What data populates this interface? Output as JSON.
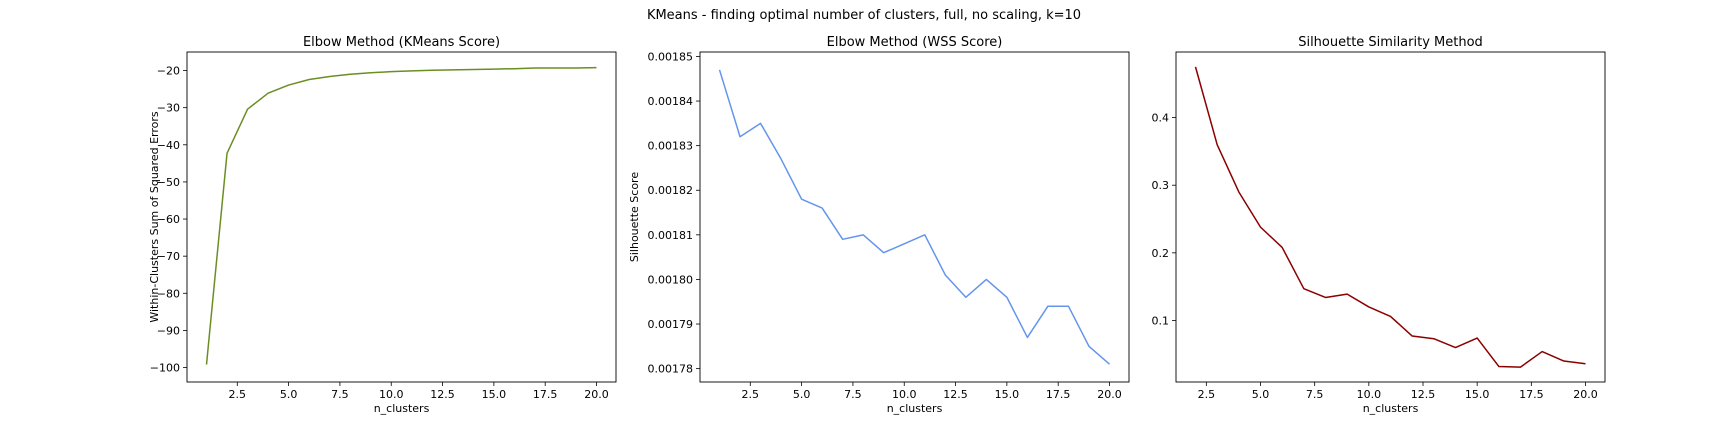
{
  "figure": {
    "suptitle": "KMeans - finding optimal number of clusters, full, no scaling, k=10"
  },
  "chart_data": [
    {
      "type": "line",
      "title": "Elbow Method (KMeans Score)",
      "xlabel": "n_clusters",
      "ylabel": "Within-Clusters Sum of Squared Errors",
      "color": "#6b8e23",
      "xlim": [
        0.05,
        20.95
      ],
      "ylim": [
        -103.9,
        -15.0
      ],
      "xticks": [
        2.5,
        5.0,
        7.5,
        10.0,
        12.5,
        15.0,
        17.5,
        20.0
      ],
      "xtick_labels": [
        "2.5",
        "5.0",
        "7.5",
        "10.0",
        "12.5",
        "15.0",
        "17.5",
        "20.0"
      ],
      "yticks": [
        -20,
        -30,
        -40,
        -50,
        -60,
        -70,
        -80,
        -90,
        -100
      ],
      "ytick_labels": [
        "−20",
        "−30",
        "−40",
        "−50",
        "−60",
        "−70",
        "−80",
        "−90",
        "−100"
      ],
      "grid": false,
      "x": [
        1,
        2,
        3,
        4,
        5,
        6,
        7,
        8,
        9,
        10,
        11,
        12,
        13,
        14,
        15,
        16,
        17,
        18,
        19,
        20
      ],
      "y": [
        -99.2,
        -42.3,
        -30.4,
        -26.1,
        -23.9,
        -22.4,
        -21.6,
        -21.0,
        -20.6,
        -20.3,
        -20.1,
        -19.9,
        -19.8,
        -19.7,
        -19.6,
        -19.5,
        -19.3,
        -19.3,
        -19.3,
        -19.2
      ]
    },
    {
      "type": "line",
      "title": "Elbow Method (WSS Score)",
      "xlabel": "n_clusters",
      "ylabel": "Silhouette Score",
      "color": "#6495ed",
      "xlim": [
        0.05,
        20.95
      ],
      "ylim": [
        0.001777,
        0.001851
      ],
      "xticks": [
        2.5,
        5.0,
        7.5,
        10.0,
        12.5,
        15.0,
        17.5,
        20.0
      ],
      "xtick_labels": [
        "2.5",
        "5.0",
        "7.5",
        "10.0",
        "12.5",
        "15.0",
        "17.5",
        "20.0"
      ],
      "yticks": [
        0.00178,
        0.00179,
        0.0018,
        0.00181,
        0.00182,
        0.00183,
        0.00184,
        0.00185
      ],
      "ytick_labels": [
        "0.00178",
        "0.00179",
        "0.00180",
        "0.00181",
        "0.00182",
        "0.00183",
        "0.00184",
        "0.00185"
      ],
      "grid": false,
      "x": [
        1,
        2,
        3,
        4,
        5,
        6,
        7,
        8,
        9,
        10,
        11,
        12,
        13,
        14,
        15,
        16,
        17,
        18,
        19,
        20
      ],
      "y": [
        0.001847,
        0.001832,
        0.001835,
        0.001827,
        0.001818,
        0.001816,
        0.001809,
        0.00181,
        0.001806,
        0.001808,
        0.00181,
        0.001801,
        0.001796,
        0.0018,
        0.001796,
        0.001787,
        0.001794,
        0.001794,
        0.001785,
        0.001781
      ]
    },
    {
      "type": "line",
      "title": "Silhouette Similarity Method",
      "xlabel": "n_clusters",
      "ylabel": "",
      "color": "#8b0000",
      "xlim": [
        1.1,
        20.9
      ],
      "ylim": [
        0.009,
        0.497
      ],
      "xticks": [
        2.5,
        5.0,
        7.5,
        10.0,
        12.5,
        15.0,
        17.5,
        20.0
      ],
      "xtick_labels": [
        "2.5",
        "5.0",
        "7.5",
        "10.0",
        "12.5",
        "15.0",
        "17.5",
        "20.0"
      ],
      "yticks": [
        0.1,
        0.2,
        0.3,
        0.4
      ],
      "ytick_labels": [
        "0.1",
        "0.2",
        "0.3",
        "0.4"
      ],
      "grid": false,
      "x": [
        2,
        3,
        4,
        5,
        6,
        7,
        8,
        9,
        10,
        11,
        12,
        13,
        14,
        15,
        16,
        17,
        18,
        19,
        20
      ],
      "y": [
        0.475,
        0.36,
        0.29,
        0.238,
        0.208,
        0.147,
        0.134,
        0.139,
        0.12,
        0.106,
        0.077,
        0.073,
        0.06,
        0.074,
        0.032,
        0.031,
        0.054,
        0.04,
        0.036
      ]
    }
  ]
}
